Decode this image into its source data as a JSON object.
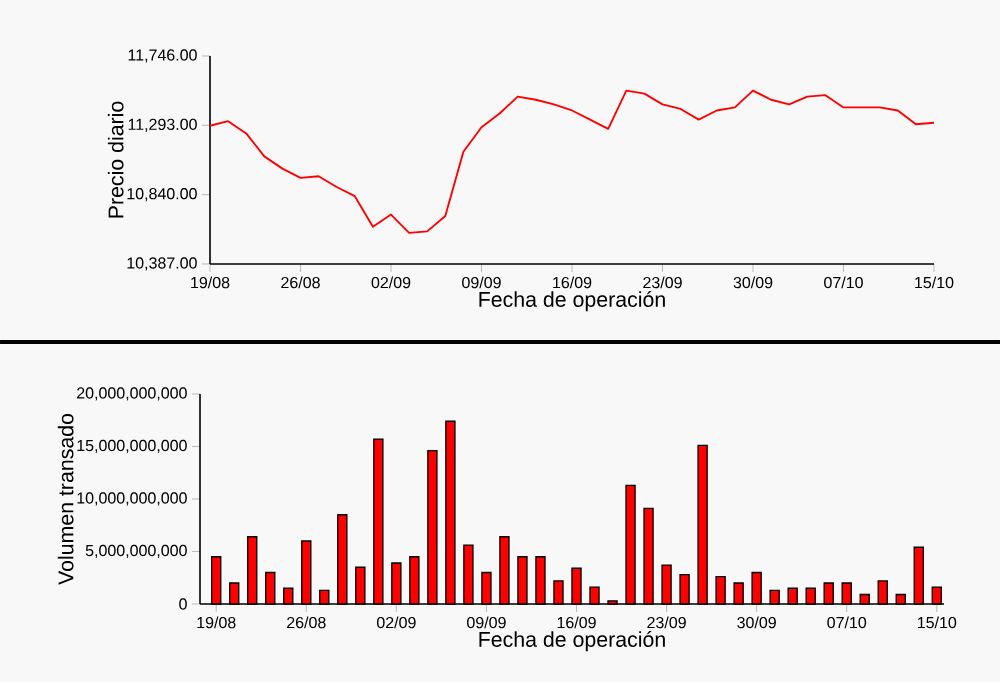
{
  "chart_data": [
    {
      "type": "line",
      "xlabel": "Fecha de operación",
      "ylabel": "Precio diario",
      "color": "#ff0000",
      "categories": [
        "19/08",
        null,
        null,
        null,
        null,
        "26/08",
        null,
        null,
        null,
        null,
        "02/09",
        null,
        null,
        null,
        null,
        "09/09",
        null,
        null,
        null,
        null,
        "16/09",
        null,
        null,
        null,
        null,
        "23/09",
        null,
        null,
        null,
        null,
        "30/09",
        null,
        null,
        null,
        null,
        "07/10",
        null,
        null,
        null,
        null,
        "15/10"
      ],
      "values": [
        11290,
        11320,
        11240,
        11090,
        11010,
        10950,
        10960,
        10890,
        10830,
        10630,
        10710,
        10590,
        10600,
        10700,
        11120,
        11280,
        11370,
        11480,
        11460,
        11430,
        11390,
        11330,
        11270,
        11520,
        11500,
        11430,
        11400,
        11330,
        11390,
        11410,
        11520,
        11460,
        11430,
        11480,
        11490,
        11410,
        11410,
        11410,
        11390,
        11300,
        11310
      ],
      "ylim": [
        10387,
        11746
      ],
      "yticks": [
        {
          "value": 10387,
          "label": "10,387.00"
        },
        {
          "value": 10840,
          "label": "10,840.00"
        },
        {
          "value": 11293,
          "label": "11,293.00"
        },
        {
          "value": 11746,
          "label": "11,746.00"
        }
      ]
    },
    {
      "type": "bar",
      "xlabel": "Fecha de operación",
      "ylabel": "Volumen transado",
      "color": "#ff0000",
      "categories": [
        "19/08",
        null,
        null,
        null,
        null,
        "26/08",
        null,
        null,
        null,
        null,
        "02/09",
        null,
        null,
        null,
        null,
        "09/09",
        null,
        null,
        null,
        null,
        "16/09",
        null,
        null,
        null,
        null,
        "23/09",
        null,
        null,
        null,
        null,
        "30/09",
        null,
        null,
        null,
        null,
        "07/10",
        null,
        null,
        null,
        null,
        "15/10"
      ],
      "values": [
        4500000000,
        2000000000,
        6400000000,
        3000000000,
        1500000000,
        6000000000,
        1300000000,
        8500000000,
        3500000000,
        15700000000,
        3900000000,
        4500000000,
        14600000000,
        17400000000,
        5600000000,
        3000000000,
        6400000000,
        4500000000,
        4500000000,
        2200000000,
        3400000000,
        1600000000,
        300000000,
        11300000000,
        9100000000,
        3700000000,
        2800000000,
        15100000000,
        2600000000,
        2000000000,
        3000000000,
        1300000000,
        1500000000,
        1500000000,
        2000000000,
        2000000000,
        900000000,
        2200000000,
        900000000,
        5400000000,
        1600000000
      ],
      "ylim": [
        0,
        20000000000
      ],
      "yticks": [
        {
          "value": 0,
          "label": "0"
        },
        {
          "value": 5000000000,
          "label": "5,000,000,000"
        },
        {
          "value": 10000000000,
          "label": "10,000,000,000"
        },
        {
          "value": 15000000000,
          "label": "15,000,000,000"
        },
        {
          "value": 20000000000,
          "label": "20,000,000,000"
        }
      ]
    }
  ]
}
